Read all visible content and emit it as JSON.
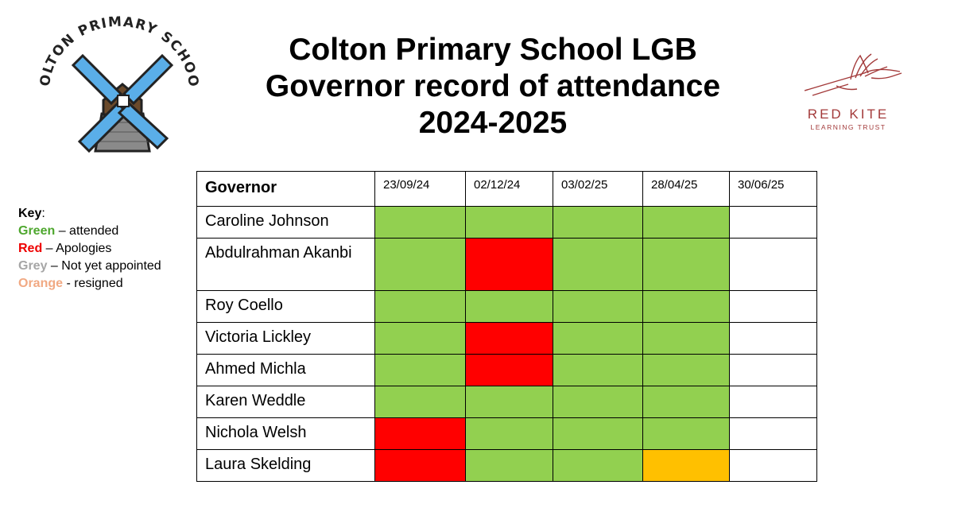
{
  "header": {
    "title_lines": [
      "Colton Primary School LGB",
      "Governor record of attendance",
      "2024-2025"
    ]
  },
  "logos": {
    "school_text": "COLTON PRIMARY SCHOOL",
    "trust_name": "RED KITE",
    "trust_sub": "LEARNING TRUST"
  },
  "key": {
    "heading": "Key",
    "items": [
      {
        "label": "Green",
        "desc": " – attended",
        "color": "#4ea72e"
      },
      {
        "label": "Red",
        "desc": " – Apologies",
        "color": "#ee0000"
      },
      {
        "label": "Grey",
        "desc": " – Not yet appointed",
        "color": "#a6a6a6"
      },
      {
        "label": "Orange",
        "desc": " - resigned",
        "color": "#f1a983"
      }
    ]
  },
  "table": {
    "header_label": "Governor",
    "dates": [
      "23/09/24",
      "02/12/24",
      "03/02/25",
      "28/04/25",
      "30/06/25"
    ],
    "status_colors": {
      "attended": "#92d050",
      "apologies": "#ff0000",
      "resigned": "#ffc000",
      "empty": "#ffffff"
    },
    "rows": [
      {
        "name": "Caroline Johnson",
        "status": [
          "attended",
          "attended",
          "attended",
          "attended",
          "empty"
        ]
      },
      {
        "name": "Abdulrahman Akanbi",
        "status": [
          "attended",
          "apologies",
          "attended",
          "attended",
          "empty"
        ]
      },
      {
        "name": "Roy Coello",
        "status": [
          "attended",
          "attended",
          "attended",
          "attended",
          "empty"
        ]
      },
      {
        "name": "Victoria Lickley",
        "status": [
          "attended",
          "apologies",
          "attended",
          "attended",
          "empty"
        ]
      },
      {
        "name": "Ahmed Michla",
        "status": [
          "attended",
          "apologies",
          "attended",
          "attended",
          "empty"
        ]
      },
      {
        "name": "Karen Weddle",
        "status": [
          "attended",
          "attended",
          "attended",
          "attended",
          "empty"
        ]
      },
      {
        "name": "Nichola Welsh",
        "status": [
          "apologies",
          "attended",
          "attended",
          "attended",
          "empty"
        ]
      },
      {
        "name": "Laura Skelding",
        "status": [
          "apologies",
          "attended",
          "attended",
          "resigned",
          "empty"
        ]
      }
    ]
  }
}
